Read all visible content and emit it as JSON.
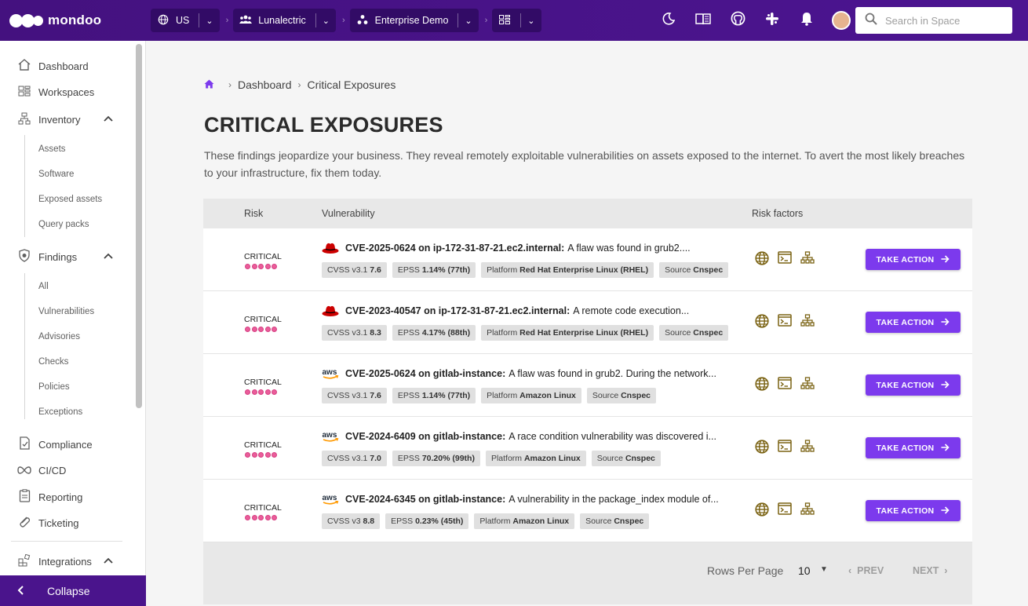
{
  "app": {
    "logo_text": "mondoo"
  },
  "scopes": [
    {
      "icon": "globe-icon",
      "label": "US"
    },
    {
      "icon": "people-icon",
      "label": "Lunalectric"
    },
    {
      "icon": "workspace-icon",
      "label": "Enterprise Demo"
    },
    {
      "icon": "grid-icon",
      "label": ""
    }
  ],
  "search": {
    "placeholder": "Search in Space"
  },
  "sidebar": {
    "items": [
      {
        "label": "Dashboard",
        "icon": "home-icon"
      },
      {
        "label": "Workspaces",
        "icon": "workspaces-icon"
      },
      {
        "label": "Inventory",
        "icon": "inventory-icon"
      },
      {
        "label": "Findings",
        "icon": "shield-bug-icon"
      },
      {
        "label": "Compliance",
        "icon": "compliance-icon"
      },
      {
        "label": "CI/CD",
        "icon": "infinity-icon"
      },
      {
        "label": "Reporting",
        "icon": "report-icon"
      },
      {
        "label": "Ticketing",
        "icon": "ticket-icon"
      },
      {
        "label": "Integrations",
        "icon": "integrations-icon"
      }
    ],
    "inventory_sub": [
      "Assets",
      "Software",
      "Exposed assets",
      "Query packs"
    ],
    "findings_sub": [
      "All",
      "Vulnerabilities",
      "Advisories",
      "Checks",
      "Policies",
      "Exceptions"
    ],
    "collapse_label": "Collapse"
  },
  "breadcrumb": [
    "Dashboard",
    "Critical Exposures"
  ],
  "page": {
    "title": "CRITICAL EXPOSURES",
    "description": "These findings jeopardize your business. They reveal remotely exploitable vulnerabilities on assets exposed to the internet. To avert the most likely breaches to your infrastructure, fix them today."
  },
  "table": {
    "headers": {
      "risk": "Risk",
      "vulnerability": "Vulnerability",
      "risk_factors": "Risk factors"
    },
    "action_label": "TAKE ACTION",
    "rows": [
      {
        "risk": "CRITICAL",
        "platform_icon": "redhat-icon",
        "title": "CVE-2025-0624 on ip-172-31-87-21.ec2.internal:",
        "desc": "A flaw was found in grub2....",
        "cvss_label": "CVSS v3.1",
        "cvss": "7.6",
        "epss_label": "EPSS",
        "epss": "1.14% (77th)",
        "platform_label": "Platform",
        "platform": "Red Hat Enterprise Linux (RHEL)",
        "source_label": "Source",
        "source": "Cnspec"
      },
      {
        "risk": "CRITICAL",
        "platform_icon": "redhat-icon",
        "title": "CVE-2023-40547 on ip-172-31-87-21.ec2.internal:",
        "desc": "A remote code execution...",
        "cvss_label": "CVSS v3.1",
        "cvss": "8.3",
        "epss_label": "EPSS",
        "epss": "4.17% (88th)",
        "platform_label": "Platform",
        "platform": "Red Hat Enterprise Linux (RHEL)",
        "source_label": "Source",
        "source": "Cnspec"
      },
      {
        "risk": "CRITICAL",
        "platform_icon": "aws-icon",
        "title": "CVE-2025-0624 on gitlab-instance:",
        "desc": "A flaw was found in grub2. During the network...",
        "cvss_label": "CVSS v3.1",
        "cvss": "7.6",
        "epss_label": "EPSS",
        "epss": "1.14% (77th)",
        "platform_label": "Platform",
        "platform": "Amazon Linux",
        "source_label": "Source",
        "source": "Cnspec"
      },
      {
        "risk": "CRITICAL",
        "platform_icon": "aws-icon",
        "title": "CVE-2024-6409 on gitlab-instance:",
        "desc": "A race condition vulnerability was discovered i...",
        "cvss_label": "CVSS v3.1",
        "cvss": "7.0",
        "epss_label": "EPSS",
        "epss": "70.20% (99th)",
        "platform_label": "Platform",
        "platform": "Amazon Linux",
        "source_label": "Source",
        "source": "Cnspec"
      },
      {
        "risk": "CRITICAL",
        "platform_icon": "aws-icon",
        "title": "CVE-2024-6345 on gitlab-instance:",
        "desc": "A vulnerability in the package_index module of...",
        "cvss_label": "CVSS v3",
        "cvss": "8.8",
        "epss_label": "EPSS",
        "epss": "0.23% (45th)",
        "platform_label": "Platform",
        "platform": "Amazon Linux",
        "source_label": "Source",
        "source": "Cnspec"
      }
    ],
    "footer": {
      "rows_per_page_label": "Rows Per Page",
      "rows_per_page": "10",
      "prev": "PREV",
      "next": "NEXT"
    }
  },
  "colors": {
    "topbar": "#4a148c",
    "accent": "#7c3aed",
    "risk_dot": "#ea5d9a",
    "risk_factor": "#7a6212"
  }
}
